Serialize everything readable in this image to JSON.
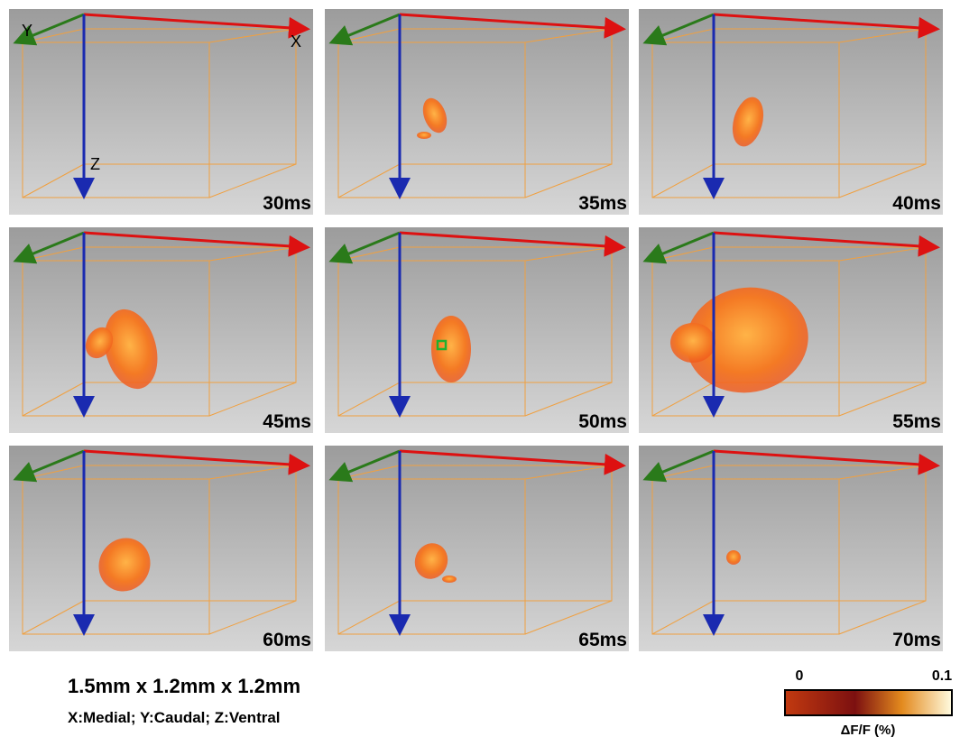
{
  "panels": [
    {
      "time": "30ms",
      "axes": {
        "x": "X",
        "y": "Y",
        "z": "Z"
      }
    },
    {
      "time": "35ms"
    },
    {
      "time": "40ms"
    },
    {
      "time": "45ms"
    },
    {
      "time": "50ms"
    },
    {
      "time": "55ms"
    },
    {
      "time": "60ms"
    },
    {
      "time": "65ms"
    },
    {
      "time": "70ms"
    }
  ],
  "dimensions": "1.5mm x 1.2mm x 1.2mm",
  "orientation": "X:Medial; Y:Caudal; Z:Ventral",
  "colorbar": {
    "min_label": "0",
    "max_label": "0.1",
    "label": "ΔF/F (%)"
  }
}
